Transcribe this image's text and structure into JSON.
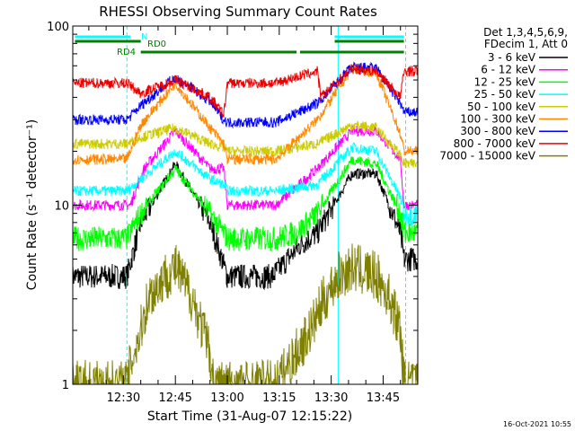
{
  "chart_data": {
    "type": "line",
    "title": "RHESSI Observing Summary Count Rates",
    "xlabel": "Start Time (31-Aug-07 12:15:22)",
    "ylabel": "Count Rate (s⁻¹ detector⁻¹)",
    "y_scale": "log",
    "ylim": [
      1,
      100
    ],
    "xlim": [
      "12:15:22",
      "13:55:00"
    ],
    "x_ticks": [
      "12:30",
      "12:45",
      "13:00",
      "13:15",
      "13:30",
      "13:45"
    ],
    "y_ticks": [
      {
        "value": 1,
        "label": "1"
      },
      {
        "value": 10,
        "label": "10"
      },
      {
        "value": 100,
        "label": "100"
      }
    ],
    "legend_position": "right",
    "legend_header": [
      "Det 1,3,4,5,6,9,",
      "FDecim 1, Att 0"
    ],
    "series": [
      {
        "name": "3 - 6 keV",
        "color": "#000000",
        "points": [
          [
            "12:16",
            4
          ],
          [
            "12:31",
            4
          ],
          [
            "12:35",
            8
          ],
          [
            "12:45",
            17
          ],
          [
            "12:55",
            8
          ],
          [
            "13:00",
            4
          ],
          [
            "13:13",
            4
          ],
          [
            "13:21",
            6
          ],
          [
            "13:26",
            7
          ],
          [
            "13:36",
            15
          ],
          [
            "13:43",
            15
          ],
          [
            "13:50",
            7
          ],
          [
            "13:51",
            5
          ]
        ]
      },
      {
        "name": "6 - 12 keV",
        "color": "#ff00ff",
        "points": [
          [
            "12:16",
            10
          ],
          [
            "12:32",
            10
          ],
          [
            "12:36",
            16
          ],
          [
            "12:45",
            26
          ],
          [
            "12:55",
            16
          ],
          [
            "12:59",
            16
          ],
          [
            "13:00",
            10
          ],
          [
            "13:14",
            10
          ],
          [
            "13:26",
            16
          ],
          [
            "13:36",
            26
          ],
          [
            "13:43",
            26
          ],
          [
            "13:50",
            18
          ],
          [
            "13:51",
            10
          ]
        ]
      },
      {
        "name": "12 - 25 keV",
        "color": "#00ff00",
        "points": [
          [
            "12:16",
            6.5
          ],
          [
            "12:31",
            6.5
          ],
          [
            "12:35",
            9
          ],
          [
            "12:45",
            16
          ],
          [
            "12:55",
            9
          ],
          [
            "12:59",
            7
          ],
          [
            "13:00",
            6.5
          ],
          [
            "13:14",
            6.5
          ],
          [
            "13:20",
            7
          ],
          [
            "13:26",
            9
          ],
          [
            "13:36",
            18
          ],
          [
            "13:43",
            17
          ],
          [
            "13:50",
            9
          ],
          [
            "13:51",
            7
          ]
        ]
      },
      {
        "name": "25 - 50 keV",
        "color": "#00ffff",
        "points": [
          [
            "12:16",
            12
          ],
          [
            "12:31",
            12
          ],
          [
            "12:35",
            14
          ],
          [
            "12:45",
            20
          ],
          [
            "12:55",
            14
          ],
          [
            "12:59",
            13
          ],
          [
            "13:00",
            12
          ],
          [
            "13:14",
            12
          ],
          [
            "13:26",
            13
          ],
          [
            "13:36",
            21
          ],
          [
            "13:43",
            20
          ],
          [
            "13:50",
            11
          ],
          [
            "13:51",
            9
          ]
        ]
      },
      {
        "name": "50 - 100 keV",
        "color": "#cccc00",
        "points": [
          [
            "12:16",
            22
          ],
          [
            "12:31",
            22
          ],
          [
            "12:35",
            24
          ],
          [
            "12:45",
            27
          ],
          [
            "12:55",
            22
          ],
          [
            "12:59",
            21
          ],
          [
            "13:00",
            20
          ],
          [
            "13:14",
            20
          ],
          [
            "13:26",
            22
          ],
          [
            "13:36",
            28
          ],
          [
            "13:43",
            27
          ],
          [
            "13:50",
            19
          ],
          [
            "13:51",
            17
          ]
        ]
      },
      {
        "name": "100 - 300 keV",
        "color": "#ff8800",
        "points": [
          [
            "12:16",
            18
          ],
          [
            "12:31",
            18
          ],
          [
            "12:35",
            28
          ],
          [
            "12:45",
            48
          ],
          [
            "12:55",
            27
          ],
          [
            "12:59",
            22
          ],
          [
            "13:00",
            18
          ],
          [
            "13:14",
            18
          ],
          [
            "13:26",
            30
          ],
          [
            "13:36",
            58
          ],
          [
            "13:43",
            55
          ],
          [
            "13:50",
            25
          ],
          [
            "13:51",
            20
          ]
        ]
      },
      {
        "name": "300 - 800 keV",
        "color": "#0000ff",
        "points": [
          [
            "12:16",
            30
          ],
          [
            "12:31",
            30
          ],
          [
            "12:35",
            36
          ],
          [
            "12:45",
            52
          ],
          [
            "12:55",
            38
          ],
          [
            "12:59",
            30
          ],
          [
            "13:00",
            29
          ],
          [
            "13:14",
            29
          ],
          [
            "13:26",
            37
          ],
          [
            "13:36",
            59
          ],
          [
            "13:43",
            58
          ],
          [
            "13:50",
            37
          ],
          [
            "13:51",
            33
          ]
        ]
      },
      {
        "name": "800 - 7000 keV",
        "color": "#ee0000",
        "points": [
          [
            "12:16",
            48
          ],
          [
            "12:31",
            48
          ],
          [
            "12:35",
            42
          ],
          [
            "12:45",
            50
          ],
          [
            "12:55",
            40
          ],
          [
            "12:59",
            32
          ],
          [
            "13:00",
            48
          ],
          [
            "13:14",
            48
          ],
          [
            "13:20",
            52
          ],
          [
            "13:26",
            56
          ],
          [
            "13:27",
            40
          ],
          [
            "13:36",
            58
          ],
          [
            "13:43",
            56
          ],
          [
            "13:50",
            40
          ],
          [
            "13:51",
            56
          ]
        ]
      },
      {
        "name": "7000 - 15000 keV",
        "color": "#808000",
        "points": [
          [
            "12:16",
            1
          ],
          [
            "12:31",
            1
          ],
          [
            "12:32",
            1.3
          ],
          [
            "12:35",
            2
          ],
          [
            "12:37",
            3
          ],
          [
            "12:42",
            4
          ],
          [
            "12:45",
            4.5
          ],
          [
            "12:50",
            3
          ],
          [
            "12:53",
            2
          ],
          [
            "12:55",
            1.5
          ],
          [
            "12:56",
            1
          ],
          [
            "13:14",
            1
          ],
          [
            "13:20",
            1.5
          ],
          [
            "13:24",
            2
          ],
          [
            "13:28",
            3
          ],
          [
            "13:32",
            4
          ],
          [
            "13:36",
            4.5
          ],
          [
            "13:43",
            4
          ],
          [
            "13:47",
            3
          ],
          [
            "13:50",
            2
          ],
          [
            "13:51",
            1
          ]
        ]
      }
    ],
    "flag_bars": [
      {
        "label": "N",
        "color": "#00ffff",
        "segments": [
          [
            "12:16",
            "12:32"
          ],
          [
            "13:31",
            "13:51"
          ]
        ]
      },
      {
        "label": "RD0",
        "color": "#008000",
        "segments": [
          [
            "12:16",
            "12:35"
          ],
          [
            "13:31",
            "13:51"
          ]
        ]
      },
      {
        "label": "RD4",
        "color": "#008000",
        "segments": [
          [
            "12:35",
            "13:00"
          ],
          [
            "13:00",
            "13:20"
          ],
          [
            "13:21",
            "13:51"
          ]
        ]
      }
    ],
    "vlines": [
      {
        "time": "12:15:22",
        "color": "#00ffff",
        "style": "solid"
      },
      {
        "time": "12:31:00",
        "color": "#00ffff",
        "style": "dashed"
      },
      {
        "time": "13:32:00",
        "color": "#00ffff",
        "style": "solid"
      },
      {
        "time": "13:51:30",
        "color": "#00ffff",
        "style": "dashed"
      }
    ]
  },
  "footer": {
    "timestamp": "16-Oct-2021 10:55"
  }
}
